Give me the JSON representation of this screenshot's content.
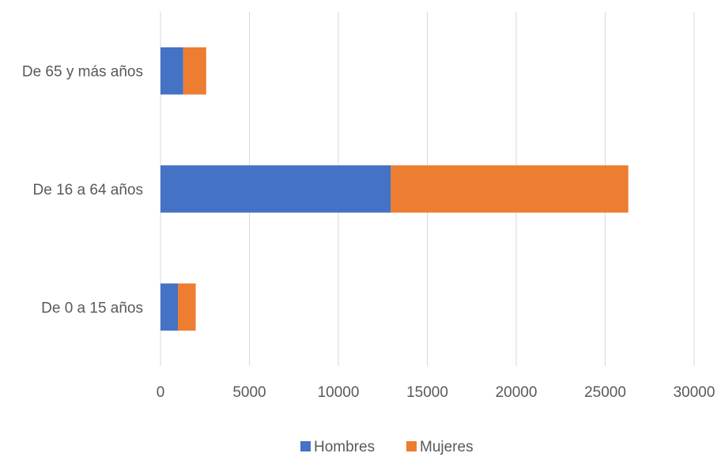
{
  "chart_data": {
    "type": "bar",
    "orientation": "horizontal",
    "stacked": true,
    "categories": [
      "De 0 a 15 años",
      "De 16 a 64 años",
      "De 65 y más años"
    ],
    "series": [
      {
        "name": "Hombres",
        "values": [
          980,
          12950,
          1280
        ],
        "color": "#4472C4"
      },
      {
        "name": "Mujeres",
        "values": [
          1000,
          13350,
          1290
        ],
        "color": "#ED7D31"
      }
    ],
    "x_ticks": [
      0,
      5000,
      10000,
      15000,
      20000,
      25000,
      30000
    ],
    "xlim": [
      0,
      30000
    ],
    "grid": true,
    "legend_position": "bottom"
  }
}
